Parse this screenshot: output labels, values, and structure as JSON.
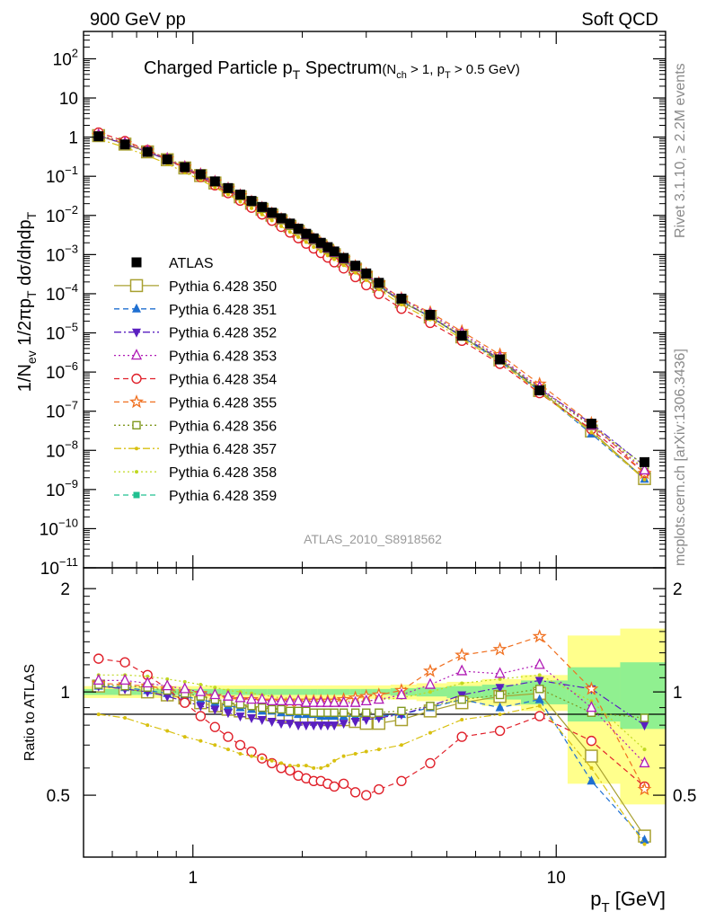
{
  "header": {
    "left": "900 GeV pp",
    "right": "Soft QCD"
  },
  "side_texts": {
    "rivet": "Rivet 3.1.10, ≥ 2.2M events",
    "mcplots": "mcplots.cern.ch [arXiv:1306.3436]"
  },
  "chart_data": [
    {
      "type": "line",
      "panel": "main",
      "title": "Charged Particle p_T Spectrum",
      "title_parts": {
        "main": "Charged Particle p",
        "sub": "T",
        "tail": " Spectrum",
        "small": "(N",
        "small_sub": "ch",
        "small_tail": " > 1, p",
        "small_sub2": "T",
        "small_tail2": " > 0.5 GeV)"
      },
      "ylabel": "1/N_ev 1/2πp_T dσ/dηdp_T",
      "ylabel_parts": {
        "a": "1/N",
        "a_sub": "ev",
        "b": " 1/2πp",
        "b_sub": "T",
        "c": " dσ/dηdp",
        "c_sub": "T"
      },
      "watermark": "ATLAS_2010_S8918562",
      "xscale": "log",
      "yscale": "log",
      "xlim": [
        0.5,
        20
      ],
      "ylim": [
        1e-11,
        500
      ],
      "x_ticks": [
        1,
        10
      ],
      "x_tick_labels": [
        "1",
        "10"
      ],
      "y_ticks": [
        1e-11,
        1e-10,
        1e-09,
        1e-08,
        1e-07,
        1e-06,
        1e-05,
        0.0001,
        0.001,
        0.01,
        0.1,
        1,
        10,
        100
      ],
      "y_tick_labels": [
        {
          "m": "10",
          "e": "−11"
        },
        {
          "m": "10",
          "e": "−10"
        },
        {
          "m": "10",
          "e": "−9"
        },
        {
          "m": "10",
          "e": "−8"
        },
        {
          "m": "10",
          "e": "−7"
        },
        {
          "m": "10",
          "e": "−6"
        },
        {
          "m": "10",
          "e": "−5"
        },
        {
          "m": "10",
          "e": "−4"
        },
        {
          "m": "10",
          "e": "−3"
        },
        {
          "m": "10",
          "e": "−2"
        },
        {
          "m": "10",
          "e": "−1"
        },
        {
          "m": "1",
          "e": ""
        },
        {
          "m": "10",
          "e": ""
        },
        {
          "m": "10",
          "e": "2"
        }
      ],
      "legend_position": "left-center",
      "x": [
        0.55,
        0.65,
        0.75,
        0.85,
        0.95,
        1.05,
        1.15,
        1.25,
        1.35,
        1.45,
        1.55,
        1.65,
        1.75,
        1.85,
        1.95,
        2.05,
        2.15,
        2.25,
        2.35,
        2.45,
        2.6,
        2.8,
        3.0,
        3.25,
        3.75,
        4.5,
        5.5,
        7.0,
        9.0,
        12.5,
        17.5
      ],
      "series": [
        {
          "name": "ATLAS",
          "color": "#000000",
          "marker": "square-filled",
          "dash": "none",
          "values": [
            1.05,
            0.65,
            0.42,
            0.27,
            0.17,
            0.112,
            0.074,
            0.05,
            0.034,
            0.0235,
            0.0165,
            0.0118,
            0.0085,
            0.0062,
            0.0046,
            0.0034,
            0.0026,
            0.002,
            0.00155,
            0.0012,
            0.00082,
            0.00052,
            0.00033,
            0.00019,
            7.5e-05,
            2.9e-05,
            8.5e-06,
            2.1e-06,
            3.4e-07,
            4.8e-08,
            5e-09
          ]
        },
        {
          "name": "Pythia 6.428 350",
          "color": "#a8a030",
          "marker": "square-open-large",
          "dash": "solid",
          "ratio": [
            1.04,
            1.02,
            1.0,
            0.98,
            0.96,
            0.93,
            0.91,
            0.89,
            0.88,
            0.87,
            0.87,
            0.86,
            0.86,
            0.85,
            0.85,
            0.84,
            0.84,
            0.84,
            0.83,
            0.83,
            0.83,
            0.82,
            0.81,
            0.81,
            0.83,
            0.88,
            0.93,
            0.97,
            0.99,
            0.65,
            0.38
          ]
        },
        {
          "name": "Pythia 6.428 351",
          "color": "#1f6fd1",
          "marker": "triangle-up-filled",
          "dash": "dashed",
          "ratio": [
            1.04,
            1.03,
            1.01,
            0.99,
            0.97,
            0.95,
            0.93,
            0.91,
            0.9,
            0.89,
            0.88,
            0.88,
            0.87,
            0.87,
            0.86,
            0.86,
            0.86,
            0.85,
            0.85,
            0.85,
            0.85,
            0.85,
            0.85,
            0.85,
            0.86,
            0.9,
            0.95,
            0.9,
            0.95,
            0.55,
            0.37
          ]
        },
        {
          "name": "Pythia 6.428 352",
          "color": "#5a1fc0",
          "marker": "triangle-down-filled",
          "dash": "dashdot",
          "ratio": [
            1.04,
            1.02,
            1.0,
            0.97,
            0.94,
            0.91,
            0.89,
            0.87,
            0.85,
            0.84,
            0.83,
            0.82,
            0.81,
            0.81,
            0.8,
            0.8,
            0.8,
            0.8,
            0.8,
            0.8,
            0.81,
            0.82,
            0.83,
            0.84,
            0.86,
            0.91,
            0.98,
            1.03,
            1.08,
            1.02,
            0.8
          ]
        },
        {
          "name": "Pythia 6.428 353",
          "color": "#b01ab5",
          "marker": "triangle-up-open",
          "dash": "dotted",
          "ratio": [
            1.08,
            1.08,
            1.06,
            1.04,
            1.02,
            1.0,
            0.98,
            0.97,
            0.96,
            0.95,
            0.95,
            0.94,
            0.94,
            0.94,
            0.94,
            0.93,
            0.93,
            0.93,
            0.93,
            0.93,
            0.93,
            0.93,
            0.94,
            0.95,
            0.98,
            1.05,
            1.15,
            1.13,
            1.2,
            0.9,
            0.62
          ]
        },
        {
          "name": "Pythia 6.428 354",
          "color": "#e0202a",
          "marker": "circle-open",
          "dash": "dashed",
          "ratio": [
            1.25,
            1.22,
            1.12,
            1.02,
            0.93,
            0.85,
            0.79,
            0.74,
            0.7,
            0.67,
            0.64,
            0.62,
            0.6,
            0.59,
            0.57,
            0.56,
            0.55,
            0.55,
            0.54,
            0.53,
            0.54,
            0.51,
            0.5,
            0.52,
            0.55,
            0.62,
            0.74,
            0.77,
            0.85,
            0.72,
            0.53
          ]
        },
        {
          "name": "Pythia 6.428 355",
          "color": "#f07020",
          "marker": "star-open",
          "dash": "dashed",
          "ratio": [
            1.06,
            1.05,
            1.04,
            1.02,
            1.0,
            0.99,
            0.97,
            0.96,
            0.95,
            0.95,
            0.94,
            0.94,
            0.94,
            0.94,
            0.94,
            0.94,
            0.94,
            0.94,
            0.94,
            0.94,
            0.95,
            0.96,
            0.97,
            0.98,
            1.01,
            1.15,
            1.28,
            1.33,
            1.45,
            1.02,
            0.52
          ]
        },
        {
          "name": "Pythia 6.428 356",
          "color": "#809820",
          "marker": "square-open-small",
          "dash": "dotted",
          "ratio": [
            1.05,
            1.04,
            1.03,
            1.01,
            0.99,
            0.97,
            0.95,
            0.93,
            0.92,
            0.91,
            0.9,
            0.89,
            0.89,
            0.88,
            0.88,
            0.88,
            0.87,
            0.87,
            0.87,
            0.87,
            0.87,
            0.87,
            0.87,
            0.87,
            0.88,
            0.91,
            0.95,
            0.98,
            1.02,
            0.87,
            0.84
          ]
        },
        {
          "name": "Pythia 6.428 357",
          "color": "#d8c010",
          "marker": "dot-small",
          "dash": "dashdot",
          "ratio": [
            0.86,
            0.84,
            0.8,
            0.77,
            0.74,
            0.72,
            0.7,
            0.68,
            0.66,
            0.65,
            0.64,
            0.63,
            0.62,
            0.61,
            0.61,
            0.61,
            0.6,
            0.6,
            0.61,
            0.63,
            0.65,
            0.66,
            0.67,
            0.68,
            0.7,
            0.76,
            0.83,
            0.86,
            0.91,
            0.6,
            0.36
          ]
        },
        {
          "name": "Pythia 6.428 358",
          "color": "#c0d820",
          "marker": "dot-small",
          "dash": "dotted",
          "ratio": [
            1.12,
            1.12,
            1.11,
            1.09,
            1.07,
            1.05,
            1.03,
            1.01,
            1.0,
            0.99,
            0.98,
            0.97,
            0.96,
            0.96,
            0.95,
            0.95,
            0.94,
            0.94,
            0.94,
            0.94,
            0.94,
            0.94,
            0.94,
            0.95,
            0.96,
            1.0,
            1.06,
            1.09,
            1.12,
            0.94,
            0.68
          ]
        },
        {
          "name": "Pythia 6.428 359",
          "color": "#20c090",
          "marker": "square-filled-small",
          "dash": "dashed",
          "ratio": [
            1.03,
            1.02,
            1.01,
            0.99,
            0.97,
            0.95,
            0.94,
            0.93,
            0.92,
            0.91,
            0.91,
            0.9,
            0.9,
            0.9,
            0.9,
            0.89,
            0.89,
            0.89,
            0.89,
            0.89,
            0.89,
            0.89,
            0.89,
            0.9,
            0.91,
            0.94,
            0.98,
            1.0,
            1.03,
            0.78,
            0.6
          ]
        }
      ]
    },
    {
      "type": "line",
      "panel": "ratio",
      "ylabel": "Ratio to ATLAS",
      "xlabel": "p_T [GeV]",
      "xlabel_parts": {
        "a": "p",
        "a_sub": "T",
        "b": "  [GeV]"
      },
      "xscale": "log",
      "xlim": [
        0.5,
        20
      ],
      "ylim": [
        0.33,
        2.3
      ],
      "y_ticks": [
        0.5,
        1,
        2
      ],
      "y_tick_labels": [
        "0.5",
        "1",
        "2"
      ],
      "x_ticks": [
        1,
        10
      ],
      "x_tick_labels": [
        "1",
        "10"
      ],
      "reference_line": 1,
      "band_stat_halfwidth": [
        0.02,
        0.02,
        0.02,
        0.02,
        0.02,
        0.02,
        0.02,
        0.02,
        0.02,
        0.02,
        0.02,
        0.02,
        0.02,
        0.02,
        0.02,
        0.02,
        0.02,
        0.02,
        0.02,
        0.02,
        0.02,
        0.02,
        0.02,
        0.02,
        0.025,
        0.03,
        0.04,
        0.05,
        0.08,
        0.18,
        0.22
      ],
      "band_total_halfwidth": [
        0.04,
        0.04,
        0.04,
        0.04,
        0.04,
        0.04,
        0.045,
        0.045,
        0.045,
        0.045,
        0.045,
        0.045,
        0.045,
        0.045,
        0.045,
        0.045,
        0.045,
        0.045,
        0.045,
        0.045,
        0.045,
        0.045,
        0.045,
        0.045,
        0.05,
        0.06,
        0.07,
        0.09,
        0.12,
        0.46,
        0.53
      ]
    }
  ]
}
